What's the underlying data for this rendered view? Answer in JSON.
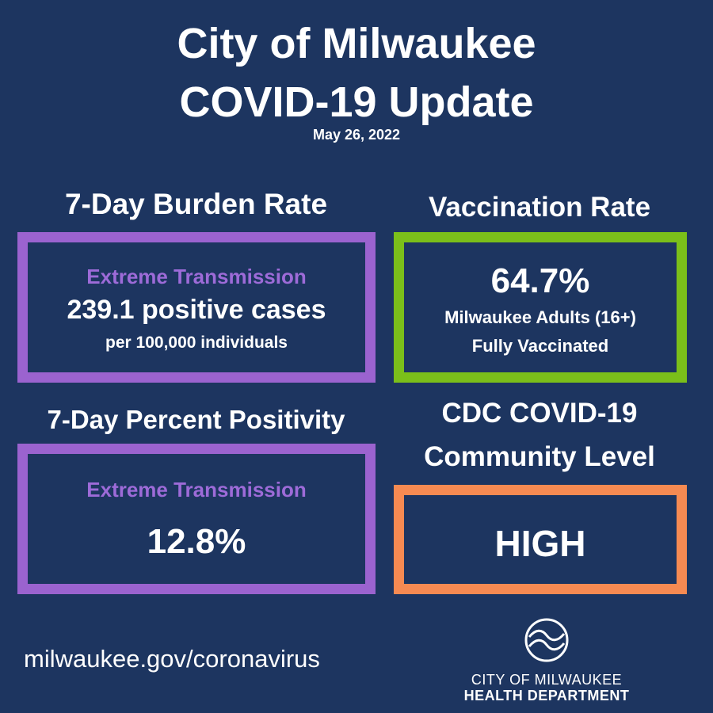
{
  "header": {
    "title_line1": "City of Milwaukee",
    "title_line2": "COVID-19 Update",
    "date": "May 26, 2022"
  },
  "burden": {
    "heading": "7-Day Burden Rate",
    "level": "Extreme Transmission",
    "value_line": "239.1 positive cases",
    "unit_line": "per 100,000 individuals"
  },
  "vaccination": {
    "heading": "Vaccination Rate",
    "value": "64.7%",
    "line1": "Milwaukee Adults (16+)",
    "line2": "Fully Vaccinated"
  },
  "positivity": {
    "heading": "7-Day Percent Positivity",
    "level": "Extreme Transmission",
    "value": "12.8%"
  },
  "cdc": {
    "heading_line1": "CDC COVID-19",
    "heading_line2": "Community Level",
    "value": "HIGH"
  },
  "footer": {
    "url": "milwaukee.gov/coronavirus",
    "logo_line1": "CITY OF MILWAUKEE",
    "logo_line2": "HEALTH DEPARTMENT"
  },
  "colors": {
    "background": "#1d3560",
    "purple_accent": "#9b63cf",
    "green_accent": "#7bbf1a",
    "orange_accent": "#f68a52",
    "text": "#ffffff"
  },
  "icons": {
    "logo": "wave-circle-icon"
  }
}
